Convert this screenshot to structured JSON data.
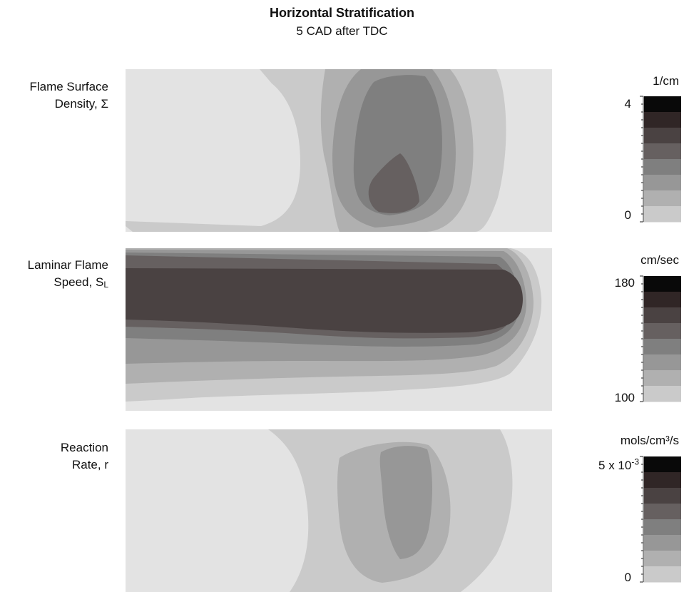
{
  "title": "Horizontal Stratification",
  "subtitle": "5 CAD after TDC",
  "colors": {
    "levels": [
      "#e3e3e3",
      "#cacaca",
      "#b0b0b0",
      "#979797",
      "#7f7f7f",
      "#666060",
      "#4a4242",
      "#302626",
      "#090909"
    ]
  },
  "chart_data": [
    {
      "type": "heatmap",
      "row_label": [
        "Flame Surface",
        "Density,  Σ"
      ],
      "colorbar": {
        "unit": "1/cm",
        "max_label": "4",
        "min_label": "0",
        "range": [
          0,
          4
        ],
        "levels": 8
      }
    },
    {
      "type": "heatmap",
      "row_label": [
        "Laminar Flame",
        "Speed, S",
        "L"
      ],
      "colorbar": {
        "unit": "cm/sec",
        "max_label": "180",
        "min_label": "100",
        "range": [
          100,
          180
        ],
        "levels": 8
      }
    },
    {
      "type": "heatmap",
      "row_label": [
        "Reaction",
        "Rate, r"
      ],
      "colorbar": {
        "unit": "mols/cm³/s",
        "max_label": "5 x 10-3",
        "min_label": "0",
        "range": [
          0,
          0.005
        ],
        "levels": 8
      }
    }
  ]
}
